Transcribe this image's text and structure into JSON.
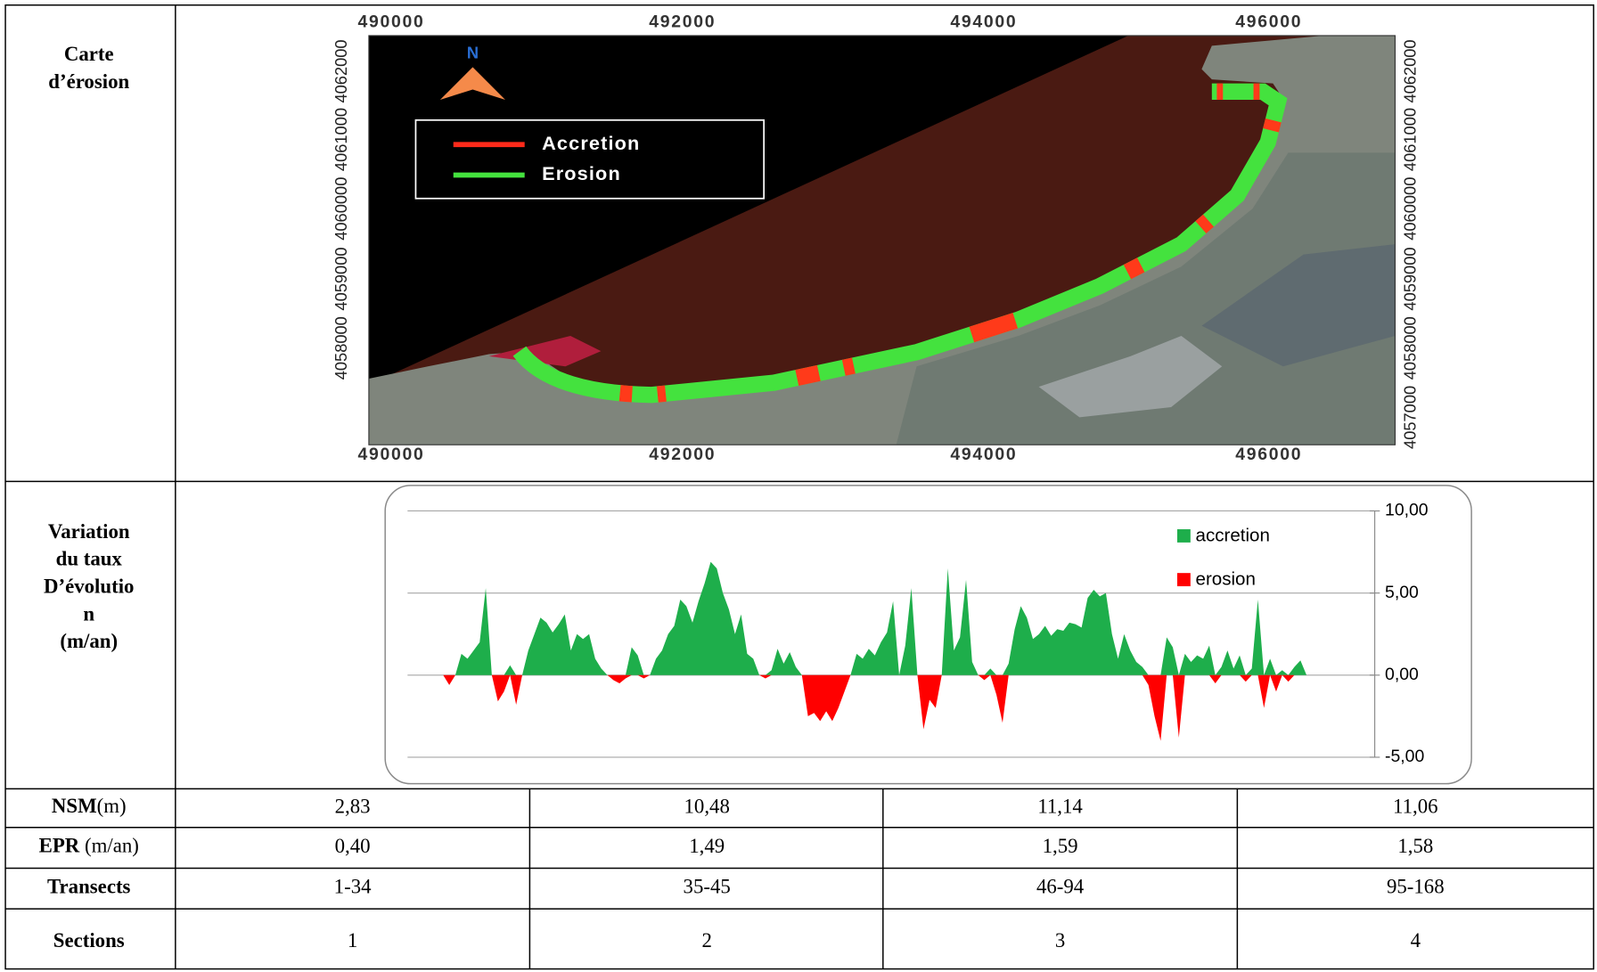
{
  "map": {
    "label": [
      "Carte",
      "d’érosion"
    ],
    "north": "N",
    "legend": [
      "Accretion",
      "Erosion"
    ],
    "x_labels": [
      "490000",
      "492000",
      "494000",
      "496000"
    ],
    "y_labels_left": [
      "4062000",
      "4061000",
      "4060000",
      "4059000",
      "4058000"
    ],
    "y_labels_right": [
      "4062000",
      "4061000",
      "4060000",
      "4059000",
      "4058000",
      "4057000"
    ]
  },
  "chart_label": [
    "Variation",
    "du taux",
    "D’évolutio",
    "n",
    "(m/an)"
  ],
  "chart_data": {
    "type": "area",
    "series": [
      {
        "name": "accretion",
        "color": "#1eae4b",
        "values": [
          0,
          0,
          0,
          1.3,
          1.0,
          1.5,
          2.0,
          5.3,
          0,
          0,
          0,
          0.6,
          0,
          0,
          1.5,
          2.5,
          3.5,
          3.2,
          2.6,
          3.1,
          3.7,
          1.5,
          2.5,
          2.2,
          2.5,
          1.0,
          0.4,
          0,
          0,
          0,
          0,
          1.7,
          1.2,
          0,
          0,
          1.0,
          1.5,
          2.5,
          3.0,
          4.6,
          4.2,
          3.2,
          4.5,
          5.6,
          6.9,
          6.5,
          5.0,
          4.0,
          2.5,
          3.7,
          1.3,
          1.0,
          0,
          0,
          0.3,
          1.6,
          0.7,
          1.4,
          0.5,
          0,
          0,
          0,
          0,
          0,
          0,
          0,
          0,
          0,
          1.3,
          1.0,
          1.6,
          1.2,
          2.0,
          2.6,
          4.5,
          0,
          1.8,
          5.3,
          0,
          0,
          0,
          0,
          0,
          6.5,
          1.5,
          2.3,
          5.8,
          0.8,
          0,
          0,
          0.4,
          0,
          0,
          0.7,
          2.8,
          4.2,
          3.5,
          2.2,
          2.5,
          3.0,
          2.4,
          2.8,
          2.7,
          3.2,
          3.1,
          2.9,
          4.7,
          5.2,
          4.8,
          5.0,
          2.5,
          1.0,
          2.5,
          1.5,
          0.8,
          0.5,
          0,
          0,
          0,
          2.3,
          1.7,
          0,
          1.3,
          0.8,
          1.2,
          1.0,
          1.8,
          0,
          0.5,
          1.5,
          0.4,
          1.2,
          0,
          0.4,
          4.6,
          0,
          1.0,
          0,
          0.3,
          0,
          0.5,
          0.9,
          0
        ]
      },
      {
        "name": "erosion",
        "color": "#ff0000",
        "values": [
          0,
          -0.6,
          0,
          0,
          0,
          0,
          0,
          0,
          0,
          -1.6,
          -1.0,
          0,
          -1.8,
          0,
          0,
          0,
          0,
          0,
          0,
          0,
          0,
          0,
          0,
          0,
          0,
          0,
          0,
          0,
          -0.3,
          -0.5,
          -0.2,
          0,
          0,
          -0.2,
          0,
          0,
          0,
          0,
          0,
          0,
          0,
          0,
          0,
          0,
          0,
          0,
          0,
          0,
          0,
          0,
          0,
          0,
          0,
          -0.2,
          0,
          0,
          0,
          0,
          0,
          0,
          -2.5,
          -2.3,
          -2.8,
          -2.2,
          -2.8,
          -2.0,
          -1.0,
          0,
          0,
          0,
          0,
          0,
          0,
          0,
          0,
          0,
          0,
          0,
          0,
          -3.3,
          -1.5,
          -2.0,
          0,
          0,
          0,
          0,
          0,
          0,
          0,
          -0.3,
          0,
          -1.2,
          -2.9,
          0,
          0,
          0,
          0,
          0,
          0,
          0,
          0,
          0,
          0,
          0,
          0,
          0,
          0,
          0,
          0,
          0,
          0,
          0,
          0,
          0,
          0,
          0,
          -0.6,
          -2.5,
          -4.0,
          0,
          0,
          -3.8,
          0,
          0,
          0,
          0,
          0,
          -0.5,
          0,
          0,
          0,
          0,
          -0.4,
          0,
          0,
          -2.0,
          0,
          -1.0,
          0,
          -0.4,
          0,
          0,
          0
        ]
      }
    ],
    "ylim": [
      -5,
      10
    ],
    "yticks": [
      {
        "value": -5,
        "label": "-5,00"
      },
      {
        "value": 0,
        "label": "0,00"
      },
      {
        "value": 5,
        "label": "5,00"
      },
      {
        "value": 10,
        "label": "10,00"
      }
    ],
    "grid": true
  },
  "table": {
    "rows": [
      {
        "label": "NSM",
        "unit": "(m)",
        "cells": [
          "2,83",
          "10,48",
          "11,14",
          "11,06"
        ]
      },
      {
        "label": "EPR",
        "unit": " (m/an)",
        "cells": [
          "0,40",
          "1,49",
          "1,59",
          "1,58"
        ]
      },
      {
        "label": "Transects",
        "cells": [
          "1-34",
          "35-45",
          "46-94",
          "95-168"
        ]
      },
      {
        "label": "Sections",
        "cells": [
          "1",
          "2",
          "3",
          "4"
        ]
      }
    ]
  }
}
